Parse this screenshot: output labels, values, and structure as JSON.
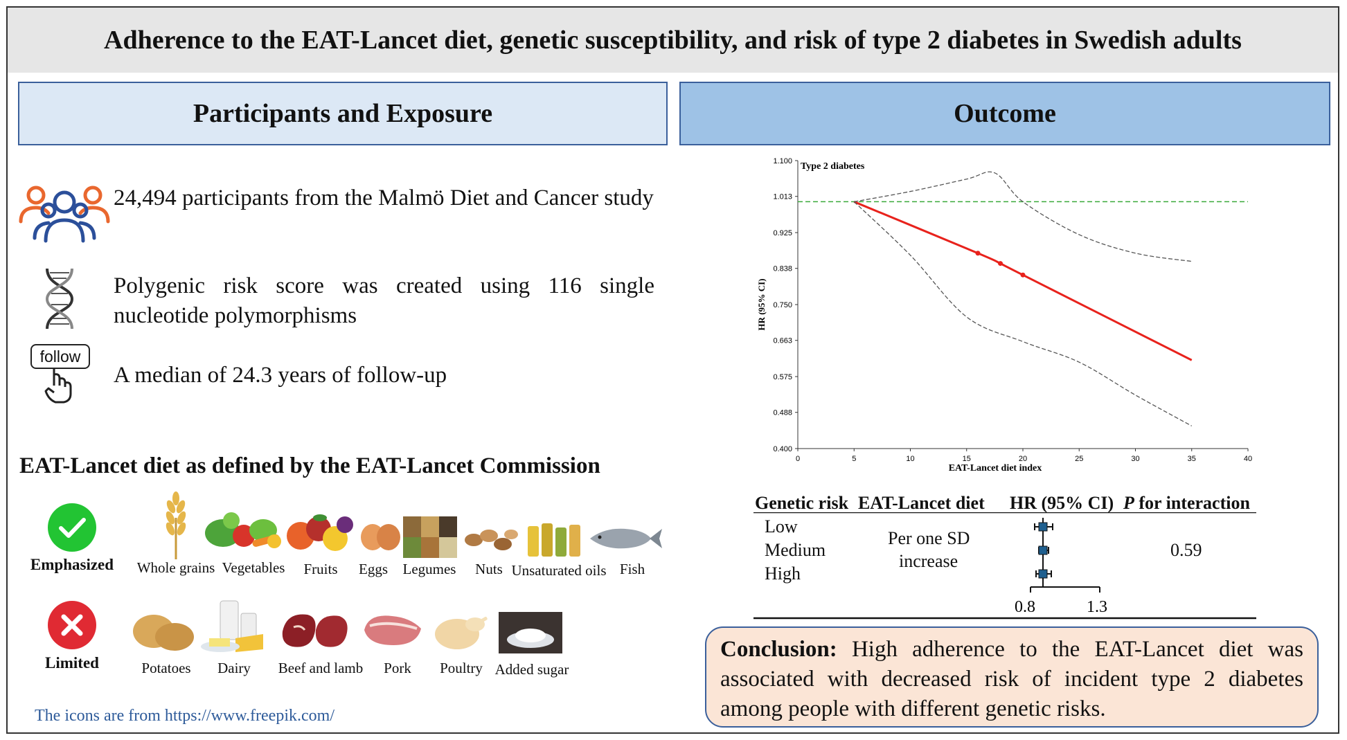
{
  "title": "Adherence to the EAT-Lancet diet, genetic susceptibility, and risk of type 2 diabetes in Swedish adults",
  "left_header": "Participants and Exposure",
  "right_header": "Outcome",
  "participants": [
    {
      "icon": "people-icon",
      "text": "24,494 participants from the Malmö Diet and Cancer study"
    },
    {
      "icon": "dna-icon",
      "text": "Polygenic risk score was created using 116 single nucleotide polymorphisms"
    },
    {
      "icon": "follow-hand-icon",
      "icon_text": "follow",
      "text": "A median of 24.3 years of follow-up"
    }
  ],
  "diet_section_title": "EAT-Lancet diet as defined by the EAT-Lancet Commission",
  "emphasized": {
    "label": "Emphasized",
    "color": "#22c433",
    "icon": "checkmark-icon",
    "foods": [
      "Whole grains",
      "Vegetables",
      "Fruits",
      "Eggs",
      "Legumes",
      "Nuts",
      "Unsaturated oils",
      "Fish"
    ]
  },
  "limited": {
    "label": "Limited",
    "color": "#e02a33",
    "icon": "cross-icon",
    "foods": [
      "Potatoes",
      "Dairy",
      "Beef and lamb",
      "Pork",
      "Poultry",
      "Added sugar"
    ]
  },
  "credit": "The icons are from https://www.freepik.com/",
  "chart_data": {
    "type": "line",
    "title": "Type 2 diabetes",
    "xlabel": "EAT-Lancet diet index",
    "ylabel": "HR (95% CI)",
    "xlim": [
      0,
      40
    ],
    "ylim": [
      0.4,
      1.1
    ],
    "xticks": [
      0,
      5,
      10,
      15,
      20,
      25,
      30,
      35,
      40
    ],
    "yticks": [
      "0.400",
      "0.488",
      "0.575",
      "0.663",
      "0.750",
      "0.838",
      "0.925",
      "1.013",
      "1.100"
    ],
    "reference_line": 1.0,
    "series": [
      {
        "role": "estimate",
        "color": "#e8221c",
        "x": [
          5,
          16,
          18,
          20,
          35
        ],
        "y": [
          1.0,
          0.875,
          0.85,
          0.822,
          0.615
        ]
      },
      {
        "role": "upper-ci",
        "color": "#555555",
        "x": [
          5,
          10,
          15,
          17.5,
          20,
          25,
          30,
          35
        ],
        "y": [
          1.0,
          1.025,
          1.055,
          1.07,
          1.0,
          0.92,
          0.875,
          0.855
        ]
      },
      {
        "role": "lower-ci",
        "color": "#555555",
        "x": [
          5,
          10,
          15,
          20,
          25,
          30,
          35
        ],
        "y": [
          1.0,
          0.87,
          0.72,
          0.66,
          0.61,
          0.53,
          0.455
        ]
      }
    ],
    "markers": [
      [
        16,
        0.875
      ],
      [
        18,
        0.85
      ],
      [
        20,
        0.822
      ]
    ]
  },
  "forest": {
    "headers": {
      "genetic": "Genetic risk",
      "diet": "EAT-Lancet diet",
      "hr": "HR (95% CI)",
      "p_italic": "P",
      "p_rest": " for interaction"
    },
    "rows": [
      "Low",
      "Medium",
      "High"
    ],
    "exposure": [
      "Per one SD",
      "increase"
    ],
    "p_value": "0.59",
    "axis_ticks": [
      "0.8",
      "1.3"
    ],
    "axis_range": [
      0.8,
      1.3
    ],
    "estimates": [
      {
        "hr": 0.89,
        "lo": 0.83,
        "hi": 0.96
      },
      {
        "hr": 0.89,
        "lo": 0.86,
        "hi": 0.93
      },
      {
        "hr": 0.89,
        "lo": 0.84,
        "hi": 0.95
      }
    ]
  },
  "conclusion": {
    "label": "Conclusion:",
    "text": " High adherence to the EAT-Lancet diet was associated with decreased risk of incident type 2 diabetes among people with different genetic risks."
  }
}
